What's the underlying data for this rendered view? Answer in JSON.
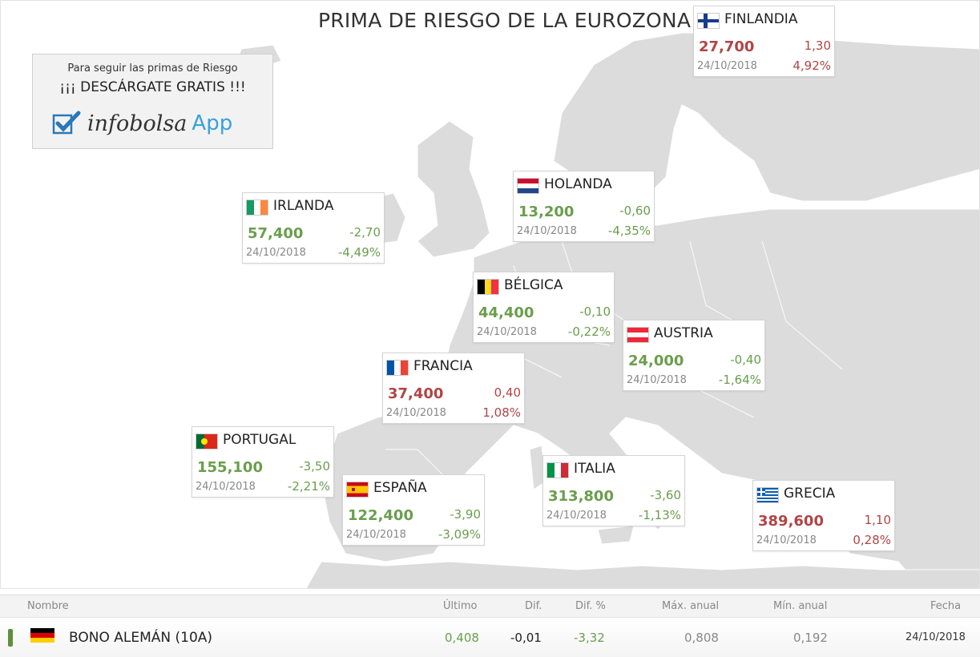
{
  "title": "PRIMA DE RIESGO DE LA EUROZONA",
  "promo": {
    "line1": "Para seguir las primas de Riesgo",
    "line2": "¡¡¡ DESCÁRGATE GRATIS !!!",
    "brand": "infobolsa",
    "app": "App"
  },
  "countries": [
    {
      "id": "finlandia",
      "name": "FINLANDIA",
      "value": "27,700",
      "change": "1,30",
      "date": "24/10/2018",
      "pct": "4,92%",
      "trend": "up",
      "flag": "finland-flag-icon"
    },
    {
      "id": "holanda",
      "name": "HOLANDA",
      "value": "13,200",
      "change": "-0,60",
      "date": "24/10/2018",
      "pct": "-4,35%",
      "trend": "down",
      "flag": "netherlands-flag-icon"
    },
    {
      "id": "irlanda",
      "name": "IRLANDA",
      "value": "57,400",
      "change": "-2,70",
      "date": "24/10/2018",
      "pct": "-4,49%",
      "trend": "down",
      "flag": "ireland-flag-icon"
    },
    {
      "id": "belgica",
      "name": "BÉLGICA",
      "value": "44,400",
      "change": "-0,10",
      "date": "24/10/2018",
      "pct": "-0,22%",
      "trend": "down",
      "flag": "belgium-flag-icon"
    },
    {
      "id": "austria",
      "name": "AUSTRIA",
      "value": "24,000",
      "change": "-0,40",
      "date": "24/10/2018",
      "pct": "-1,64%",
      "trend": "down",
      "flag": "austria-flag-icon"
    },
    {
      "id": "francia",
      "name": "FRANCIA",
      "value": "37,400",
      "change": "0,40",
      "date": "24/10/2018",
      "pct": "1,08%",
      "trend": "up",
      "flag": "france-flag-icon"
    },
    {
      "id": "portugal",
      "name": "PORTUGAL",
      "value": "155,100",
      "change": "-3,50",
      "date": "24/10/2018",
      "pct": "-2,21%",
      "trend": "down",
      "flag": "portugal-flag-icon"
    },
    {
      "id": "espana",
      "name": "ESPAÑA",
      "value": "122,400",
      "change": "-3,90",
      "date": "24/10/2018",
      "pct": "-3,09%",
      "trend": "down",
      "flag": "spain-flag-icon"
    },
    {
      "id": "italia",
      "name": "ITALIA",
      "value": "313,800",
      "change": "-3,60",
      "date": "24/10/2018",
      "pct": "-1,13%",
      "trend": "down",
      "flag": "italy-flag-icon"
    },
    {
      "id": "grecia",
      "name": "GRECIA",
      "value": "389,600",
      "change": "1,10",
      "date": "24/10/2018",
      "pct": "0,28%",
      "trend": "up",
      "flag": "greece-flag-icon"
    }
  ],
  "table": {
    "headers": {
      "nombre": "Nombre",
      "ultimo": "Último",
      "dif": "Dif.",
      "difpct": "Dif. %",
      "max": "Máx. anual",
      "min": "Mín. anual",
      "fecha": "Fecha"
    },
    "row": {
      "nombre": "BONO ALEMÁN (10A)",
      "ultimo": "0,408",
      "dif": "-0,01",
      "difpct": "-3,32",
      "max": "0,808",
      "min": "0,192",
      "fecha": "24/10/2018",
      "flag": "germany-flag-icon"
    }
  },
  "colors": {
    "up": "#b04545",
    "down": "#6a9e4d",
    "land": "#dcdcdc",
    "accent": "#3aa0dc"
  }
}
